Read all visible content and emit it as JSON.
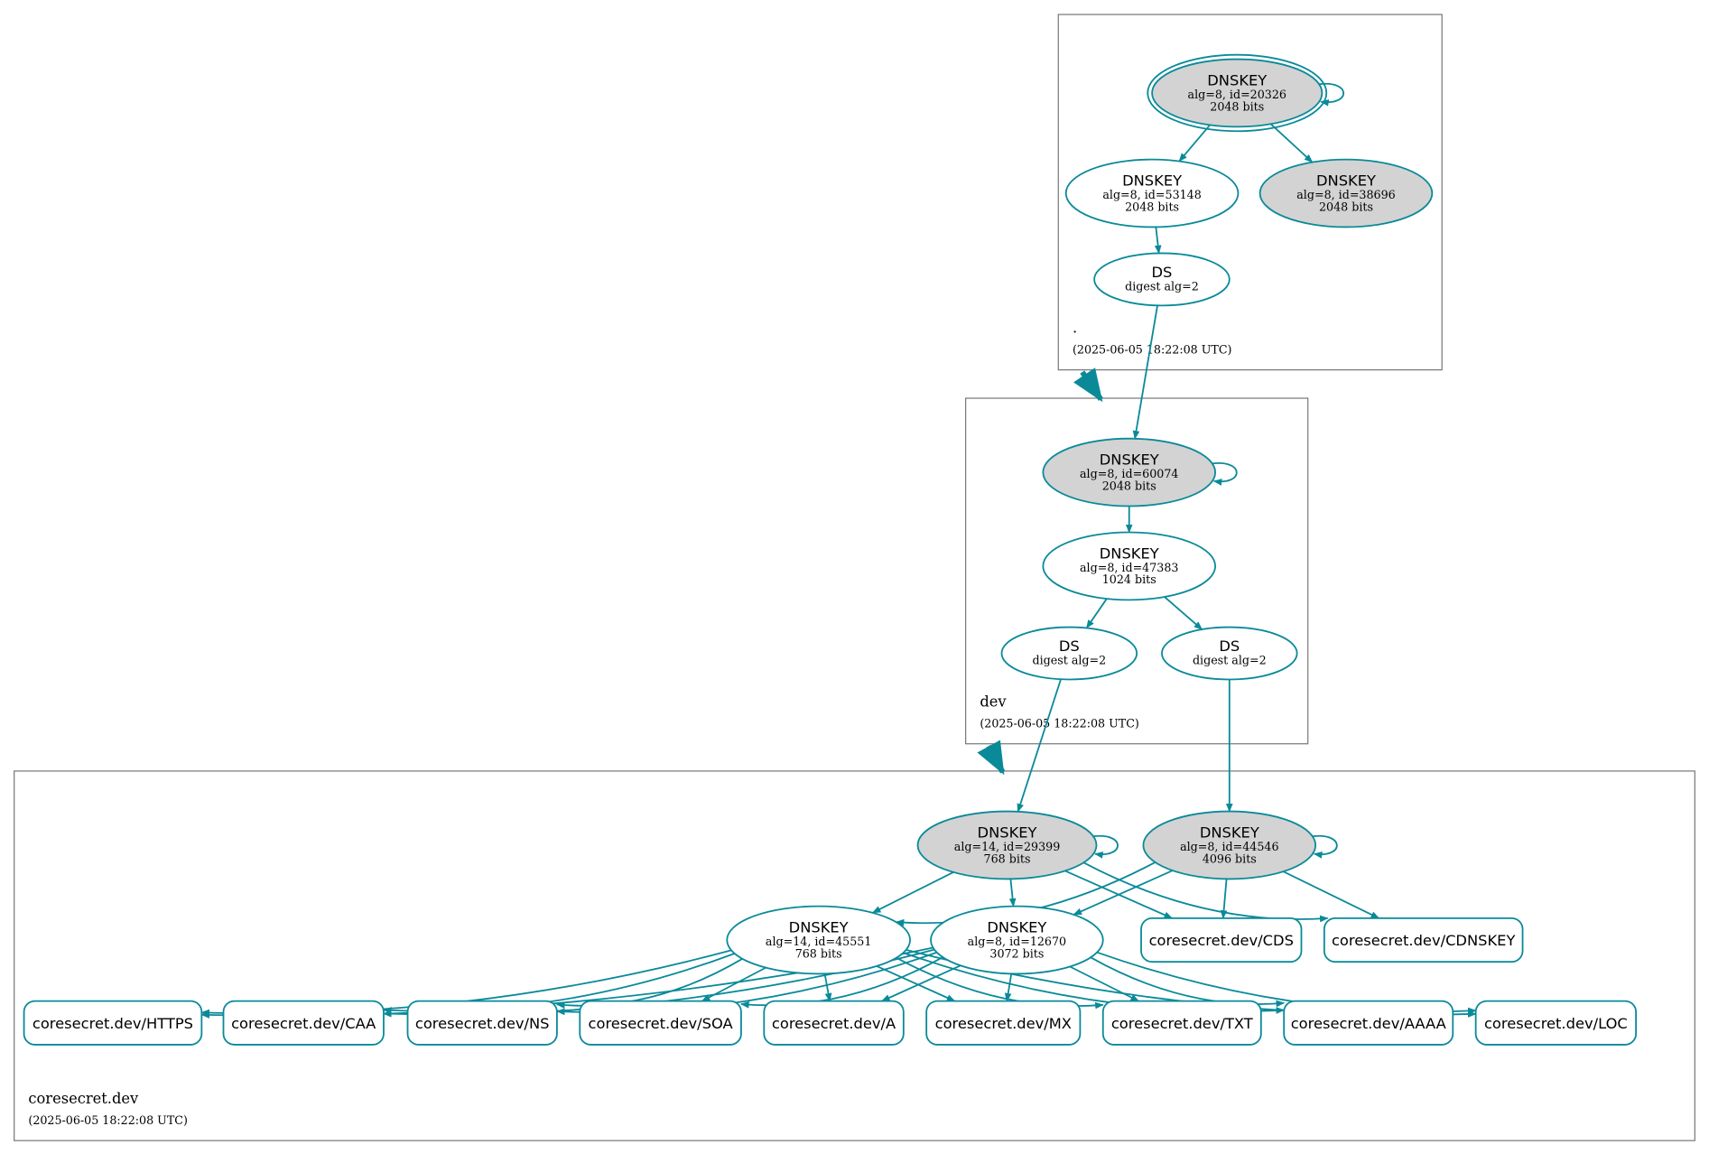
{
  "colors": {
    "edge": "#0a8a99",
    "secure_entry_fill": "#d3d3d3",
    "zone_border": "#777777"
  },
  "zones": [
    {
      "id": "root",
      "name": ".",
      "time": "(2025-06-05 18:22:08 UTC)"
    },
    {
      "id": "dev",
      "name": "dev",
      "time": "(2025-06-05 18:22:08 UTC)"
    },
    {
      "id": "cs",
      "name": "coresecret.dev",
      "time": "(2025-06-05 18:22:08 UTC)"
    }
  ],
  "nodes": [
    {
      "id": "k20326",
      "zone": "root",
      "shape": "ellipse",
      "title": "DNSKEY",
      "lines": [
        "alg=8, id=20326",
        "2048 bits"
      ],
      "filled": true,
      "trust_anchor": true
    },
    {
      "id": "k53148",
      "zone": "root",
      "shape": "ellipse",
      "title": "DNSKEY",
      "lines": [
        "alg=8, id=53148",
        "2048 bits"
      ],
      "filled": false
    },
    {
      "id": "k38696",
      "zone": "root",
      "shape": "ellipse",
      "title": "DNSKEY",
      "lines": [
        "alg=8, id=38696",
        "2048 bits"
      ],
      "filled": true
    },
    {
      "id": "dsRoot",
      "zone": "root",
      "shape": "ellipse",
      "title": "DS",
      "lines": [
        "digest alg=2"
      ],
      "filled": false
    },
    {
      "id": "k60074",
      "zone": "dev",
      "shape": "ellipse",
      "title": "DNSKEY",
      "lines": [
        "alg=8, id=60074",
        "2048 bits"
      ],
      "filled": true
    },
    {
      "id": "k47383",
      "zone": "dev",
      "shape": "ellipse",
      "title": "DNSKEY",
      "lines": [
        "alg=8, id=47383",
        "1024 bits"
      ],
      "filled": false
    },
    {
      "id": "dsDev1",
      "zone": "dev",
      "shape": "ellipse",
      "title": "DS",
      "lines": [
        "digest alg=2"
      ],
      "filled": false
    },
    {
      "id": "dsDev2",
      "zone": "dev",
      "shape": "ellipse",
      "title": "DS",
      "lines": [
        "digest alg=2"
      ],
      "filled": false
    },
    {
      "id": "k29399",
      "zone": "cs",
      "shape": "ellipse",
      "title": "DNSKEY",
      "lines": [
        "alg=14, id=29399",
        "768 bits"
      ],
      "filled": true
    },
    {
      "id": "k44546",
      "zone": "cs",
      "shape": "ellipse",
      "title": "DNSKEY",
      "lines": [
        "alg=8, id=44546",
        "4096 bits"
      ],
      "filled": true
    },
    {
      "id": "k45551",
      "zone": "cs",
      "shape": "ellipse",
      "title": "DNSKEY",
      "lines": [
        "alg=14, id=45551",
        "768 bits"
      ],
      "filled": false
    },
    {
      "id": "k12670",
      "zone": "cs",
      "shape": "ellipse",
      "title": "DNSKEY",
      "lines": [
        "alg=8, id=12670",
        "3072 bits"
      ],
      "filled": false
    },
    {
      "id": "rCDS",
      "zone": "cs",
      "shape": "rrset",
      "title": "coresecret.dev/CDS"
    },
    {
      "id": "rCDNSKEY",
      "zone": "cs",
      "shape": "rrset",
      "title": "coresecret.dev/CDNSKEY"
    },
    {
      "id": "rHTTPS",
      "zone": "cs",
      "shape": "rrset",
      "title": "coresecret.dev/HTTPS"
    },
    {
      "id": "rCAA",
      "zone": "cs",
      "shape": "rrset",
      "title": "coresecret.dev/CAA"
    },
    {
      "id": "rNS",
      "zone": "cs",
      "shape": "rrset",
      "title": "coresecret.dev/NS"
    },
    {
      "id": "rSOA",
      "zone": "cs",
      "shape": "rrset",
      "title": "coresecret.dev/SOA"
    },
    {
      "id": "rA",
      "zone": "cs",
      "shape": "rrset",
      "title": "coresecret.dev/A"
    },
    {
      "id": "rMX",
      "zone": "cs",
      "shape": "rrset",
      "title": "coresecret.dev/MX"
    },
    {
      "id": "rTXT",
      "zone": "cs",
      "shape": "rrset",
      "title": "coresecret.dev/TXT"
    },
    {
      "id": "rAAAA",
      "zone": "cs",
      "shape": "rrset",
      "title": "coresecret.dev/AAAA"
    },
    {
      "id": "rLOC",
      "zone": "cs",
      "shape": "rrset",
      "title": "coresecret.dev/LOC"
    }
  ],
  "edges": [
    [
      "k20326",
      "k20326"
    ],
    [
      "k20326",
      "k53148"
    ],
    [
      "k20326",
      "k38696"
    ],
    [
      "k53148",
      "dsRoot"
    ],
    [
      "dsRoot",
      "k60074"
    ],
    [
      "k60074",
      "k60074"
    ],
    [
      "k60074",
      "k47383"
    ],
    [
      "k47383",
      "dsDev1"
    ],
    [
      "k47383",
      "dsDev2"
    ],
    [
      "dsDev1",
      "k29399"
    ],
    [
      "dsDev2",
      "k44546"
    ],
    [
      "k29399",
      "k29399"
    ],
    [
      "k44546",
      "k44546"
    ],
    [
      "k29399",
      "k45551"
    ],
    [
      "k29399",
      "k12670"
    ],
    [
      "k29399",
      "rCDS"
    ],
    [
      "k29399",
      "rCDNSKEY"
    ],
    [
      "k44546",
      "k45551"
    ],
    [
      "k44546",
      "k12670"
    ],
    [
      "k44546",
      "rCDS"
    ],
    [
      "k44546",
      "rCDNSKEY"
    ],
    [
      "k45551",
      "rHTTPS"
    ],
    [
      "k45551",
      "rCAA"
    ],
    [
      "k45551",
      "rNS"
    ],
    [
      "k45551",
      "rSOA"
    ],
    [
      "k45551",
      "rA"
    ],
    [
      "k45551",
      "rMX"
    ],
    [
      "k45551",
      "rTXT"
    ],
    [
      "k45551",
      "rAAAA"
    ],
    [
      "k45551",
      "rLOC"
    ],
    [
      "k12670",
      "rHTTPS"
    ],
    [
      "k12670",
      "rCAA"
    ],
    [
      "k12670",
      "rNS"
    ],
    [
      "k12670",
      "rSOA"
    ],
    [
      "k12670",
      "rA"
    ],
    [
      "k12670",
      "rMX"
    ],
    [
      "k12670",
      "rTXT"
    ],
    [
      "k12670",
      "rAAAA"
    ],
    [
      "k12670",
      "rLOC"
    ]
  ],
  "delegations": [
    [
      "root",
      "dev"
    ],
    [
      "dev",
      "cs"
    ]
  ]
}
